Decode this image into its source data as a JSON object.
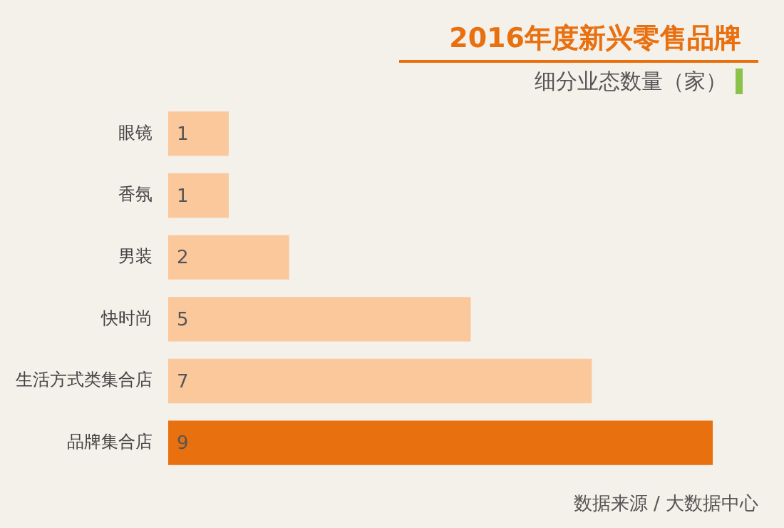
{
  "chart_data": {
    "type": "bar",
    "orientation": "horizontal",
    "title": "2016年度新兴零售品牌",
    "subtitle": "细分业态数量（家）",
    "categories": [
      "眼镜",
      "香氛",
      "男装",
      "快时尚",
      "生活方式类集合店",
      "品牌集合店"
    ],
    "values": [
      1,
      1,
      2,
      5,
      7,
      9
    ],
    "colors": [
      "#fbc89c",
      "#fbc89c",
      "#fbc89c",
      "#fbc89c",
      "#fbc89c",
      "#e8700f"
    ],
    "data_labels": true,
    "annotations": [
      "数据来源 / 大数据中心"
    ]
  }
}
